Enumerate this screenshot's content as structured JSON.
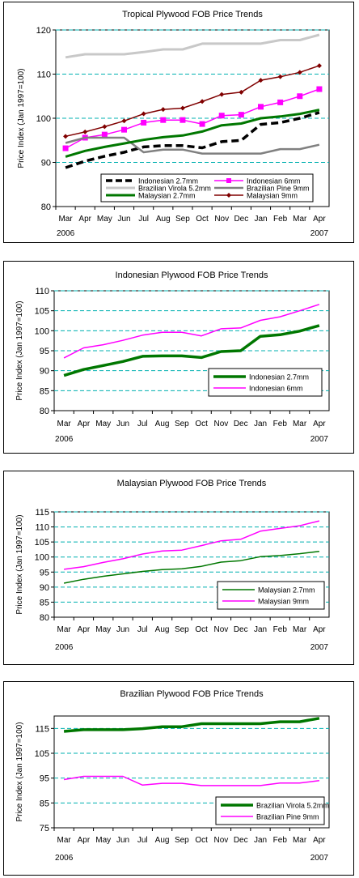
{
  "chart_data": [
    {
      "type": "line",
      "title": "Tropical Plywood FOB Price Trends",
      "ylabel": "Price Index (Jan 1997=100)",
      "ylim": [
        80,
        120
      ],
      "yticks": [
        80,
        90,
        100,
        110,
        120
      ],
      "categories": [
        "Mar",
        "Apr",
        "May",
        "Jun",
        "Jul",
        "Aug",
        "Sep",
        "Oct",
        "Nov",
        "Dec",
        "Jan",
        "Feb",
        "Mar",
        "Apr"
      ],
      "year_labels": [
        {
          "label": "2006",
          "index": 0
        },
        {
          "label": "2007",
          "index": 13
        }
      ],
      "grid": true,
      "plot_background": "#ffffff",
      "gridline_color": "#00b0b0",
      "legend_position": "bottom-center inside plot",
      "series": [
        {
          "name": "Indonesian 2.7mm",
          "values": [
            88.8,
            90.3,
            91.4,
            92.3,
            93.5,
            93.8,
            93.8,
            93.3,
            94.7,
            95.0,
            98.6,
            99.0,
            100.0,
            101.3
          ],
          "color": "#000000",
          "style": "dashed",
          "width": 3.5,
          "marker": "none"
        },
        {
          "name": "Indonesian 6mm",
          "values": [
            93.2,
            95.6,
            96.3,
            97.4,
            99.0,
            99.6,
            99.6,
            98.7,
            100.6,
            100.8,
            102.6,
            103.6,
            105.0,
            106.6
          ],
          "color": "#ff00ff",
          "style": "solid",
          "width": 1.5,
          "marker": "square"
        },
        {
          "name": "Brazilian Virola 5.2mm",
          "values": [
            113.8,
            114.5,
            114.5,
            114.5,
            115.0,
            115.6,
            115.6,
            116.9,
            116.9,
            116.9,
            116.9,
            117.7,
            117.7,
            118.9
          ],
          "color": "#c8c8c8",
          "style": "solid",
          "width": 3,
          "marker": "none"
        },
        {
          "name": "Brazilian Pine 9mm",
          "values": [
            94.4,
            95.6,
            95.6,
            95.6,
            92.3,
            92.9,
            92.9,
            92.0,
            92.0,
            92.0,
            92.0,
            93.0,
            93.0,
            94.0
          ],
          "color": "#808080",
          "style": "solid",
          "width": 2.5,
          "marker": "none"
        },
        {
          "name": "Malaysian 2.7mm",
          "values": [
            91.3,
            92.6,
            93.5,
            94.3,
            95.1,
            95.7,
            96.1,
            97.0,
            98.4,
            98.8,
            100.0,
            100.4,
            101.0,
            101.9
          ],
          "color": "#007700",
          "style": "solid",
          "width": 3,
          "marker": "none"
        },
        {
          "name": "Malaysian 9mm",
          "values": [
            95.9,
            96.9,
            98.1,
            99.4,
            101.0,
            102.0,
            102.3,
            103.8,
            105.4,
            105.9,
            108.6,
            109.4,
            110.4,
            111.9
          ],
          "color": "#800000",
          "style": "solid",
          "width": 1.5,
          "marker": "diamond"
        }
      ]
    },
    {
      "type": "line",
      "title": "Indonesian Plywood FOB Price Trends",
      "ylabel": "Price Index (Jan 1997=100)",
      "ylim": [
        80,
        110
      ],
      "yticks": [
        80,
        85,
        90,
        95,
        100,
        105,
        110
      ],
      "categories": [
        "Mar",
        "Apr",
        "May",
        "Jun",
        "Jul",
        "Aug",
        "Sep",
        "Oct",
        "Nov",
        "Dec",
        "Jan",
        "Feb",
        "Mar",
        "Apr"
      ],
      "year_labels": [
        {
          "label": "2006",
          "index": 0
        },
        {
          "label": "2007",
          "index": 13
        }
      ],
      "grid": true,
      "plot_background": "#ffffff",
      "gridline_color": "#00b0b0",
      "legend_position": "bottom-right inside plot",
      "series": [
        {
          "name": "Indonesian 2.7mm",
          "values": [
            88.8,
            90.3,
            91.3,
            92.3,
            93.6,
            93.7,
            93.7,
            93.3,
            94.8,
            95.0,
            98.6,
            99.0,
            99.9,
            101.3
          ],
          "color": "#007700",
          "style": "solid",
          "width": 3.5,
          "marker": "none"
        },
        {
          "name": "Indonesian 6mm",
          "values": [
            93.2,
            95.7,
            96.5,
            97.6,
            98.9,
            99.6,
            99.6,
            98.7,
            100.5,
            100.7,
            102.6,
            103.5,
            105.0,
            106.6
          ],
          "color": "#ff00ff",
          "style": "solid",
          "width": 1.5,
          "marker": "none"
        }
      ]
    },
    {
      "type": "line",
      "title": "Malaysian Plywood FOB Price Trends",
      "ylabel": "Price Index (Jan 1997=100)",
      "ylim": [
        80,
        115
      ],
      "yticks": [
        80,
        85,
        90,
        95,
        100,
        105,
        110,
        115
      ],
      "categories": [
        "Mar",
        "Apr",
        "May",
        "Jun",
        "Jul",
        "Aug",
        "Sep",
        "Oct",
        "Nov",
        "Dec",
        "Jan",
        "Feb",
        "Mar",
        "Apr"
      ],
      "year_labels": [
        {
          "label": "2006",
          "index": 0
        },
        {
          "label": "2007",
          "index": 13
        }
      ],
      "grid": true,
      "plot_background": "#ffffff",
      "gridline_color": "#00b0b0",
      "legend_position": "bottom-right inside plot",
      "series": [
        {
          "name": "Malaysian 2.7mm",
          "values": [
            91.3,
            92.6,
            93.6,
            94.4,
            95.2,
            95.8,
            96.1,
            96.9,
            98.3,
            98.8,
            100.1,
            100.5,
            101.1,
            101.9
          ],
          "color": "#007700",
          "style": "solid",
          "width": 1.5,
          "marker": "none"
        },
        {
          "name": "Malaysian 9mm",
          "values": [
            95.9,
            96.8,
            98.2,
            99.4,
            101.0,
            102.0,
            102.3,
            103.8,
            105.4,
            105.9,
            108.6,
            109.5,
            110.4,
            112.0
          ],
          "color": "#ff00ff",
          "style": "solid",
          "width": 1.5,
          "marker": "none"
        }
      ]
    },
    {
      "type": "line",
      "title": "Brazilian Plywood FOB Price Trends",
      "ylabel": "Price Index (Jan 1997=100)",
      "ylim": [
        75,
        120
      ],
      "yticks": [
        75,
        85,
        95,
        105,
        115
      ],
      "categories": [
        "Mar",
        "Apr",
        "May",
        "Jun",
        "Jul",
        "Aug",
        "Sep",
        "Oct",
        "Nov",
        "Dec",
        "Jan",
        "Feb",
        "Mar",
        "Apr"
      ],
      "year_labels": [
        {
          "label": "2006",
          "index": 0
        },
        {
          "label": "2007",
          "index": 13
        }
      ],
      "grid": true,
      "plot_background": "#ffffff",
      "gridline_color": "#00b0b0",
      "legend_position": "bottom-right inside plot",
      "series": [
        {
          "name": "Brazilian Virola 5.2mm",
          "values": [
            113.8,
            114.5,
            114.5,
            114.5,
            114.9,
            115.7,
            115.7,
            116.9,
            116.9,
            116.9,
            116.9,
            117.7,
            117.7,
            119.1
          ],
          "color": "#007700",
          "style": "solid",
          "width": 3.5,
          "marker": "none"
        },
        {
          "name": "Brazilian Pine 9mm",
          "values": [
            94.4,
            95.7,
            95.7,
            95.7,
            92.2,
            92.9,
            92.9,
            92.0,
            92.0,
            92.0,
            92.0,
            93.0,
            93.0,
            94.0
          ],
          "color": "#ff00ff",
          "style": "solid",
          "width": 1.5,
          "marker": "none"
        }
      ]
    }
  ]
}
